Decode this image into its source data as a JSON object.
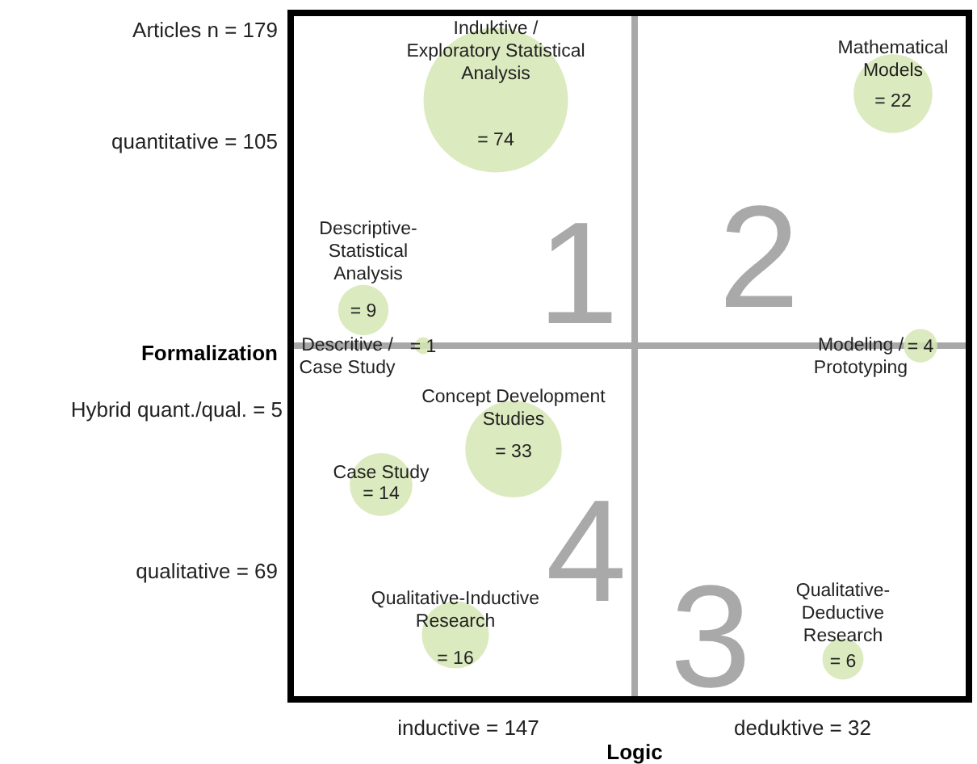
{
  "chart_data": {
    "type": "other",
    "xlabel": "Logic",
    "ylabel": "Formalization",
    "categories": [
      "Induktive /\nExploratory Statistical\nAnalysis",
      "Mathematical\nModels",
      "Descriptive-\nStatistical\nAnalysis",
      "Descritive /\nCase Study",
      "Modeling /\nPrototyping",
      "Concept Development\nStudies",
      "Case Study",
      "Qualitative-Inductive\nResearch",
      "Qualitative-\nDeductive\nResearch"
    ],
    "values": [
      74,
      22,
      9,
      1,
      4,
      33,
      14,
      16,
      6
    ],
    "value_labels": [
      "= 74",
      "= 22",
      "= 9",
      "= 1",
      "= 4",
      "= 33",
      "= 14",
      "= 16",
      "= 6"
    ],
    "color": "#d6e6b4",
    "annotations": [
      "Articles n = 179",
      "quantitative = 105",
      "Hybrid quant./qual. = 5",
      "qualitative = 69",
      "inductive = 147",
      "deduktive = 32",
      "1",
      "2",
      "3",
      "4"
    ]
  }
}
